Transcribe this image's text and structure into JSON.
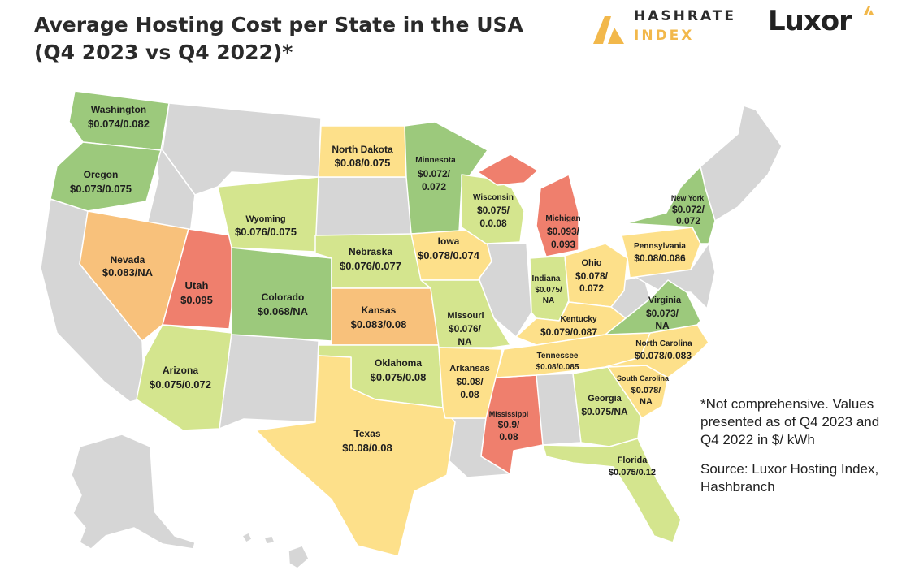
{
  "title_line1": "Average Hosting Cost per State in the USA",
  "title_line2": "(Q4 2023 vs Q4 2022)*",
  "logos": {
    "hashrate_line1": "HASHRATE",
    "hashrate_line2": "INDEX",
    "luxor": "Luxor"
  },
  "colors": {
    "green": "#9cc97c",
    "light_green": "#d4e58e",
    "yellow": "#fde08a",
    "orange": "#f8c17b",
    "red": "#ef7f6d",
    "no_data": "#d6d6d6"
  },
  "states": {
    "washington": {
      "name": "Washington",
      "value": "$0.074/0.082"
    },
    "oregon": {
      "name": "Oregon",
      "value": "$0.073/0.075"
    },
    "nevada": {
      "name": "Nevada",
      "value": "$0.083/NA"
    },
    "utah": {
      "name": "Utah",
      "value": "$0.095"
    },
    "arizona": {
      "name": "Arizona",
      "value": "$0.075/0.072"
    },
    "wyoming": {
      "name": "Wyoming",
      "value": "$0.076/0.075"
    },
    "colorado": {
      "name": "Colorado",
      "value": "$0.068/NA"
    },
    "north_dakota": {
      "name": "North Dakota",
      "value": "$0.08/0.075"
    },
    "nebraska": {
      "name": "Nebraska",
      "value": "$0.076/0.077"
    },
    "kansas": {
      "name": "Kansas",
      "value": "$0.083/0.08"
    },
    "oklahoma": {
      "name": "Oklahoma",
      "value": "$0.075/0.08"
    },
    "texas": {
      "name": "Texas",
      "value": "$0.08/0.08"
    },
    "minnesota": {
      "name": "Minnesota",
      "value_l1": "$0.072/",
      "value_l2": "0.072"
    },
    "iowa": {
      "name": "Iowa",
      "value": "$0.078/0.074"
    },
    "missouri": {
      "name": "Missouri",
      "value_l1": "$0.076/",
      "value_l2": "NA"
    },
    "arkansas": {
      "name": "Arkansas",
      "value_l1": "$0.08/",
      "value_l2": "0.08"
    },
    "mississippi": {
      "name": "Mississippi",
      "value_l1": "$0.9/",
      "value_l2": "0.08"
    },
    "wisconsin": {
      "name": "Wisconsin",
      "value_l1": "$0.075/",
      "value_l2": "0.0.08"
    },
    "michigan": {
      "name": "Michigan",
      "value_l1": "$0.093/",
      "value_l2": "0.093"
    },
    "indiana": {
      "name": "Indiana",
      "value_l1": "$0.075/",
      "value_l2": "NA"
    },
    "ohio": {
      "name": "Ohio",
      "value_l1": "$0.078/",
      "value_l2": "0.072"
    },
    "kentucky": {
      "name": "Kentucky",
      "value": "$0.079/0.087"
    },
    "tennessee": {
      "name": "Tennessee",
      "value": "$0.08/0.085"
    },
    "georgia": {
      "name": "Georgia",
      "value": "$0.075/NA"
    },
    "florida": {
      "name": "Florida",
      "value": "$0.075/0.12"
    },
    "south_carolina": {
      "name": "South Carolina",
      "value_l1": "$0.078/",
      "value_l2": "NA"
    },
    "north_carolina": {
      "name": "North Carolina",
      "value": "$0.078/0.083"
    },
    "virginia": {
      "name": "Virginia",
      "value_l1": "$0.073/",
      "value_l2": "NA"
    },
    "pennsylvania": {
      "name": "Pennsylvania",
      "value": "$0.08/0.086"
    },
    "new_york": {
      "name": "New York",
      "value_l1": "$0.072/",
      "value_l2": "0.072"
    }
  },
  "note": {
    "disclaimer": "*Not comprehensive. Values presented as of Q4 2023 and Q4 2022 in $/ kWh",
    "source": "Source: Luxor Hosting Index, Hashbranch"
  }
}
